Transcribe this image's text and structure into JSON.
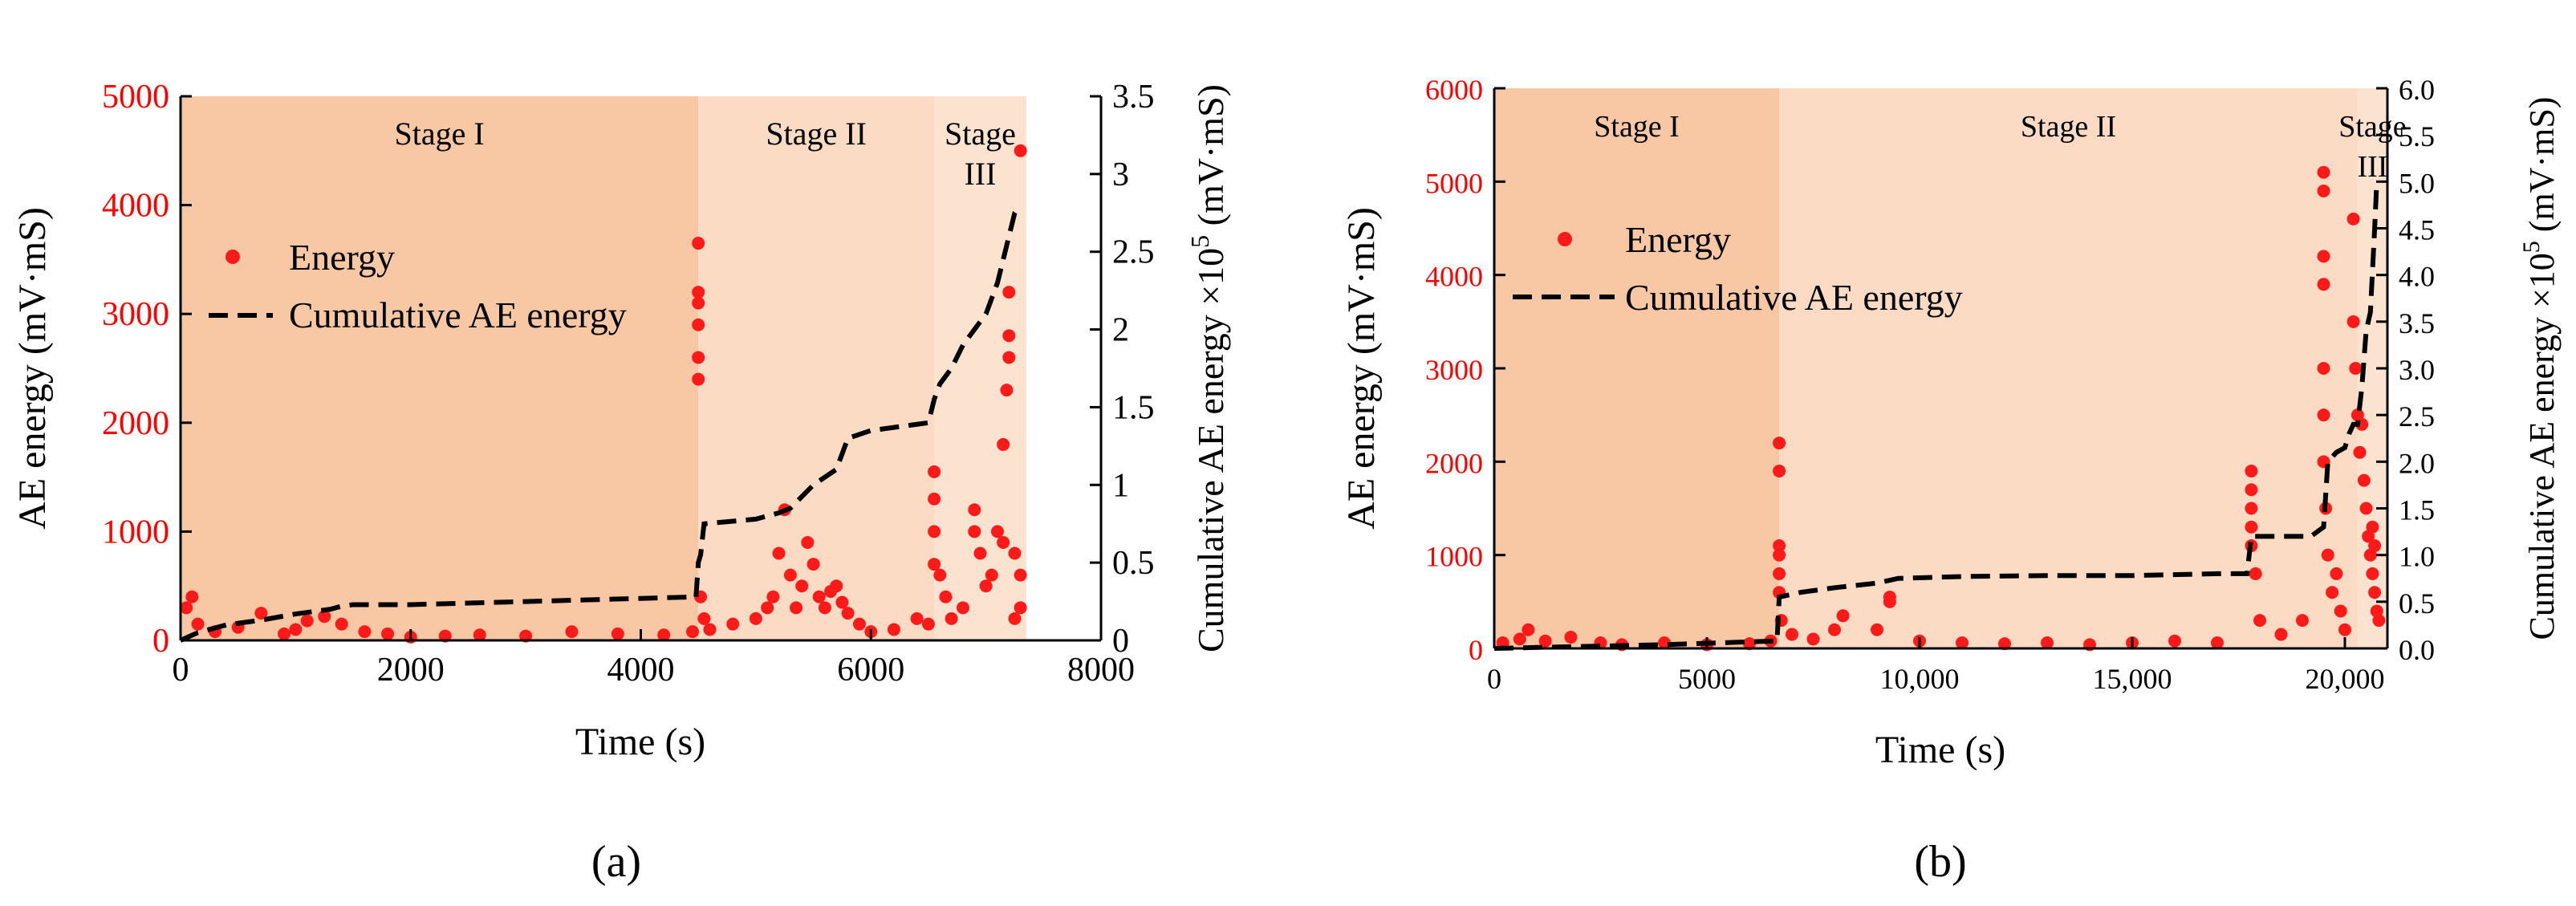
{
  "colors": {
    "energy": "#ff1a1a",
    "cumulative": "#000000",
    "stage1_bg": "#f8c7a3",
    "stage2_bg": "#fbdbc3",
    "stage3_bg": "#fce3d0",
    "left_axis": "#ff0000",
    "right_axis": "#000000"
  },
  "chart_data": [
    {
      "type": "scatter",
      "panel_label": "(a)",
      "xlabel": "Time (s)",
      "ylabel": "AE energy (mV·mS)",
      "y2label": "Cumulative AE energy ×10",
      "y2label_exp": "5",
      "y2label_unit": " (mV·mS)",
      "xlim": [
        0,
        8000
      ],
      "ylim": [
        0,
        5000
      ],
      "y2lim": [
        0,
        3.5
      ],
      "xticks": [
        0,
        2000,
        4000,
        6000,
        8000
      ],
      "xtick_labels": [
        "0",
        "2000",
        "4000",
        "6000",
        "8000"
      ],
      "yticks": [
        0,
        1000,
        2000,
        3000,
        4000,
        5000
      ],
      "ytick_labels": [
        "0",
        "1000",
        "2000",
        "3000",
        "4000",
        "5000"
      ],
      "y2ticks": [
        0,
        0.5,
        1,
        1.5,
        2,
        2.5,
        3,
        3.5
      ],
      "y2tick_labels": [
        "0",
        "0.5",
        "1",
        "1.5",
        "2",
        "2.5",
        "3",
        "3.5"
      ],
      "stages": [
        {
          "label": "Stage I",
          "label2": "",
          "x_start": 0,
          "x_end": 4500
        },
        {
          "label": "Stage II",
          "label2": "",
          "x_start": 4500,
          "x_end": 6550
        },
        {
          "label": "Stage",
          "label2": "III",
          "x_start": 6550,
          "x_end": 7350
        }
      ],
      "legend": {
        "energy": "Energy",
        "cumulative": "Cumulative AE energy",
        "position": "upper-left"
      },
      "series": [
        {
          "name": "Energy",
          "kind": "scatter",
          "points": [
            [
              50,
              300
            ],
            [
              100,
              400
            ],
            [
              150,
              150
            ],
            [
              300,
              80
            ],
            [
              500,
              120
            ],
            [
              700,
              250
            ],
            [
              900,
              60
            ],
            [
              1000,
              100
            ],
            [
              1100,
              180
            ],
            [
              1250,
              220
            ],
            [
              1400,
              150
            ],
            [
              1600,
              80
            ],
            [
              1800,
              60
            ],
            [
              2000,
              30
            ],
            [
              2300,
              40
            ],
            [
              2600,
              50
            ],
            [
              3000,
              40
            ],
            [
              3400,
              80
            ],
            [
              3800,
              60
            ],
            [
              4200,
              50
            ],
            [
              4450,
              80
            ],
            [
              4500,
              2400
            ],
            [
              4500,
              2600
            ],
            [
              4500,
              2900
            ],
            [
              4500,
              3100
            ],
            [
              4500,
              3200
            ],
            [
              4500,
              3650
            ],
            [
              4520,
              400
            ],
            [
              4550,
              200
            ],
            [
              4600,
              100
            ],
            [
              4800,
              150
            ],
            [
              5000,
              200
            ],
            [
              5100,
              300
            ],
            [
              5150,
              400
            ],
            [
              5200,
              800
            ],
            [
              5250,
              1200
            ],
            [
              5300,
              600
            ],
            [
              5350,
              300
            ],
            [
              5400,
              500
            ],
            [
              5450,
              900
            ],
            [
              5500,
              700
            ],
            [
              5550,
              400
            ],
            [
              5600,
              300
            ],
            [
              5650,
              450
            ],
            [
              5700,
              500
            ],
            [
              5750,
              350
            ],
            [
              5800,
              250
            ],
            [
              5900,
              150
            ],
            [
              6000,
              80
            ],
            [
              6200,
              100
            ],
            [
              6400,
              200
            ],
            [
              6500,
              150
            ],
            [
              6550,
              1550
            ],
            [
              6550,
              1300
            ],
            [
              6550,
              1000
            ],
            [
              6550,
              700
            ],
            [
              6600,
              600
            ],
            [
              6650,
              400
            ],
            [
              6700,
              200
            ],
            [
              6800,
              300
            ],
            [
              6900,
              1200
            ],
            [
              6900,
              1000
            ],
            [
              6950,
              800
            ],
            [
              7000,
              500
            ],
            [
              7050,
              600
            ],
            [
              7100,
              1000
            ],
            [
              7150,
              900
            ],
            [
              7150,
              1800
            ],
            [
              7180,
              2300
            ],
            [
              7200,
              2600
            ],
            [
              7200,
              2800
            ],
            [
              7200,
              3200
            ],
            [
              7250,
              800
            ],
            [
              7300,
              4500
            ],
            [
              7300,
              600
            ],
            [
              7300,
              300
            ],
            [
              7250,
              200
            ]
          ]
        },
        {
          "name": "Cumulative AE energy",
          "kind": "line",
          "points": [
            [
              0,
              0
            ],
            [
              150,
              0.05
            ],
            [
              400,
              0.1
            ],
            [
              700,
              0.13
            ],
            [
              1000,
              0.17
            ],
            [
              1300,
              0.2
            ],
            [
              1400,
              0.22
            ],
            [
              1500,
              0.23
            ],
            [
              2000,
              0.23
            ],
            [
              2500,
              0.24
            ],
            [
              3000,
              0.25
            ],
            [
              3500,
              0.26
            ],
            [
              4000,
              0.27
            ],
            [
              4480,
              0.28
            ],
            [
              4500,
              0.5
            ],
            [
              4520,
              0.55
            ],
            [
              4550,
              0.75
            ],
            [
              5000,
              0.78
            ],
            [
              5200,
              0.82
            ],
            [
              5300,
              0.85
            ],
            [
              5500,
              1.0
            ],
            [
              5700,
              1.1
            ],
            [
              5800,
              1.3
            ],
            [
              6000,
              1.35
            ],
            [
              6300,
              1.38
            ],
            [
              6500,
              1.4
            ],
            [
              6550,
              1.55
            ],
            [
              6600,
              1.65
            ],
            [
              6700,
              1.75
            ],
            [
              6800,
              1.9
            ],
            [
              6900,
              2.0
            ],
            [
              7000,
              2.1
            ],
            [
              7100,
              2.3
            ],
            [
              7150,
              2.45
            ],
            [
              7200,
              2.6
            ],
            [
              7250,
              2.75
            ],
            [
              7300,
              2.8
            ]
          ]
        }
      ]
    },
    {
      "type": "scatter",
      "panel_label": "(b)",
      "xlabel": "Time (s)",
      "ylabel": "AE energy (mV·mS)",
      "y2label": "Cumulative AE energy ×10",
      "y2label_exp": "5",
      "y2label_unit": " (mV·mS)",
      "xlim": [
        0,
        21000
      ],
      "ylim": [
        0,
        6000
      ],
      "y2lim": [
        0,
        6.0
      ],
      "xticks": [
        0,
        5000,
        10000,
        15000,
        20000
      ],
      "xtick_labels": [
        "0",
        "5000",
        "10,000",
        "15,000",
        "20,000"
      ],
      "yticks": [
        0,
        1000,
        2000,
        3000,
        4000,
        5000,
        6000
      ],
      "ytick_labels": [
        "0",
        "1000",
        "2000",
        "3000",
        "4000",
        "5000",
        "6000"
      ],
      "y2ticks": [
        0,
        0.5,
        1.0,
        1.5,
        2.0,
        2.5,
        3.0,
        3.5,
        4.0,
        4.5,
        5.0,
        5.5,
        6.0
      ],
      "y2tick_labels": [
        "0.0",
        "0.5",
        "1.0",
        "1.5",
        "2.0",
        "2.5",
        "3.0",
        "3.5",
        "4.0",
        "4.5",
        "5.0",
        "5.5",
        "6.0"
      ],
      "stages": [
        {
          "label": "Stage I",
          "label2": "",
          "x_start": 0,
          "x_end": 6700
        },
        {
          "label": "Stage II",
          "label2": "",
          "x_start": 6700,
          "x_end": 20300
        },
        {
          "label": "Stage",
          "label2": "III",
          "x_start": 20300,
          "x_end": 21000
        }
      ],
      "legend": {
        "energy": "Energy",
        "cumulative": "Cumulative AE energy",
        "position": "upper-left"
      },
      "series": [
        {
          "name": "Energy",
          "kind": "scatter",
          "points": [
            [
              200,
              60
            ],
            [
              600,
              100
            ],
            [
              800,
              200
            ],
            [
              1200,
              80
            ],
            [
              1800,
              120
            ],
            [
              2500,
              60
            ],
            [
              3000,
              40
            ],
            [
              4000,
              60
            ],
            [
              5000,
              40
            ],
            [
              6000,
              50
            ],
            [
              6500,
              80
            ],
            [
              6700,
              2200
            ],
            [
              6700,
              1900
            ],
            [
              6700,
              1100
            ],
            [
              6700,
              1000
            ],
            [
              6700,
              800
            ],
            [
              6700,
              600
            ],
            [
              6750,
              300
            ],
            [
              7000,
              150
            ],
            [
              7500,
              100
            ],
            [
              8000,
              200
            ],
            [
              8200,
              350
            ],
            [
              9000,
              200
            ],
            [
              9300,
              500
            ],
            [
              9300,
              550
            ],
            [
              10000,
              80
            ],
            [
              11000,
              60
            ],
            [
              12000,
              50
            ],
            [
              13000,
              60
            ],
            [
              14000,
              40
            ],
            [
              15000,
              60
            ],
            [
              16000,
              80
            ],
            [
              17000,
              60
            ],
            [
              17800,
              1900
            ],
            [
              17800,
              1700
            ],
            [
              17800,
              1500
            ],
            [
              17800,
              1300
            ],
            [
              17800,
              1100
            ],
            [
              17900,
              800
            ],
            [
              18000,
              300
            ],
            [
              18500,
              150
            ],
            [
              19000,
              300
            ],
            [
              19500,
              5100
            ],
            [
              19500,
              4900
            ],
            [
              19500,
              4200
            ],
            [
              19500,
              3900
            ],
            [
              19500,
              3000
            ],
            [
              19500,
              2500
            ],
            [
              19500,
              2000
            ],
            [
              19550,
              1500
            ],
            [
              19600,
              1000
            ],
            [
              19700,
              600
            ],
            [
              19800,
              800
            ],
            [
              19900,
              400
            ],
            [
              20000,
              200
            ],
            [
              20200,
              4600
            ],
            [
              20200,
              3500
            ],
            [
              20250,
              3000
            ],
            [
              20300,
              2500
            ],
            [
              20350,
              2100
            ],
            [
              20400,
              2400
            ],
            [
              20450,
              1800
            ],
            [
              20500,
              1500
            ],
            [
              20550,
              1200
            ],
            [
              20600,
              1000
            ],
            [
              20650,
              800
            ],
            [
              20700,
              600
            ],
            [
              20750,
              400
            ],
            [
              20800,
              300
            ],
            [
              20700,
              1100
            ],
            [
              20650,
              1300
            ]
          ]
        },
        {
          "name": "Cumulative AE energy",
          "kind": "line",
          "points": [
            [
              0,
              0
            ],
            [
              2000,
              0.02
            ],
            [
              4000,
              0.04
            ],
            [
              6000,
              0.07
            ],
            [
              6650,
              0.08
            ],
            [
              6700,
              0.55
            ],
            [
              7200,
              0.6
            ],
            [
              8000,
              0.65
            ],
            [
              9000,
              0.7
            ],
            [
              9500,
              0.75
            ],
            [
              11000,
              0.77
            ],
            [
              13000,
              0.78
            ],
            [
              15000,
              0.78
            ],
            [
              17000,
              0.8
            ],
            [
              17700,
              0.8
            ],
            [
              17800,
              1.2
            ],
            [
              19200,
              1.2
            ],
            [
              19500,
              1.3
            ],
            [
              19600,
              2.0
            ],
            [
              19800,
              2.1
            ],
            [
              20000,
              2.15
            ],
            [
              20100,
              2.3
            ],
            [
              20200,
              2.4
            ],
            [
              20300,
              2.4
            ],
            [
              20400,
              2.8
            ],
            [
              20500,
              3.4
            ],
            [
              20600,
              3.6
            ],
            [
              20700,
              4.5
            ],
            [
              20750,
              5.0
            ]
          ]
        }
      ]
    }
  ]
}
